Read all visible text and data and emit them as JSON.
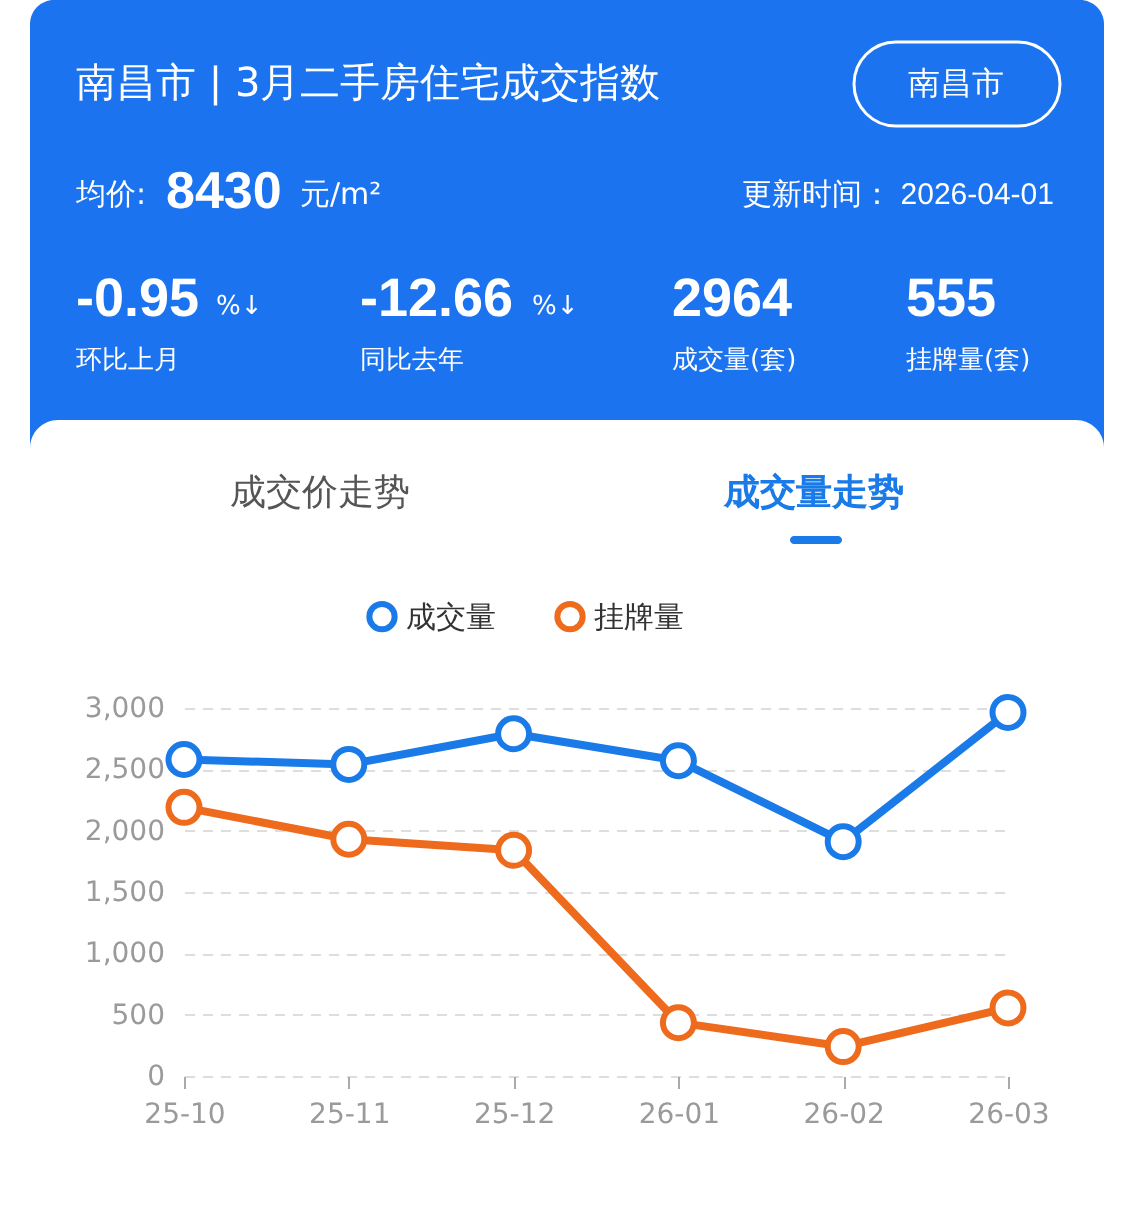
{
  "chart_data": {
    "type": "line",
    "title": "南昌市 | 3月二手房住宅成交指数",
    "annotations": [
      "南昌市",
      "均价:",
      "8430",
      "元/m²",
      "更新时间：  2026-04-01",
      "-0.95",
      "%↓",
      "环比上月",
      "-12.66",
      "%↓",
      "同比去年",
      "2964",
      "成交量(套)",
      "555",
      "挂牌量(套)",
      "成交价走势",
      "成交量走势"
    ],
    "categories": [
      "25-10",
      "25-11",
      "25-12",
      "26-01",
      "26-02",
      "26-03"
    ],
    "series": [
      {
        "name": "成交量",
        "color": "#1a7be8",
        "values": [
          2580,
          2540,
          2790,
          2570,
          1910,
          2964
        ]
      },
      {
        "name": "挂牌量",
        "color": "#ee6a1c",
        "values": [
          2190,
          1930,
          1840,
          435,
          240,
          555
        ]
      }
    ],
    "ylim": [
      0,
      3000
    ],
    "yticks": [
      0,
      500,
      {
        "value": 1000,
        "label": "1,000"
      },
      {
        "value": 1500,
        "label": "1,500"
      },
      {
        "value": 2000,
        "label": "2,000"
      },
      {
        "value": 2500,
        "label": "2,500"
      },
      {
        "value": 3000,
        "label": "3,000"
      }
    ],
    "grid": "y",
    "legend": "top",
    "marker": "circle",
    "line_style": "solid"
  }
}
